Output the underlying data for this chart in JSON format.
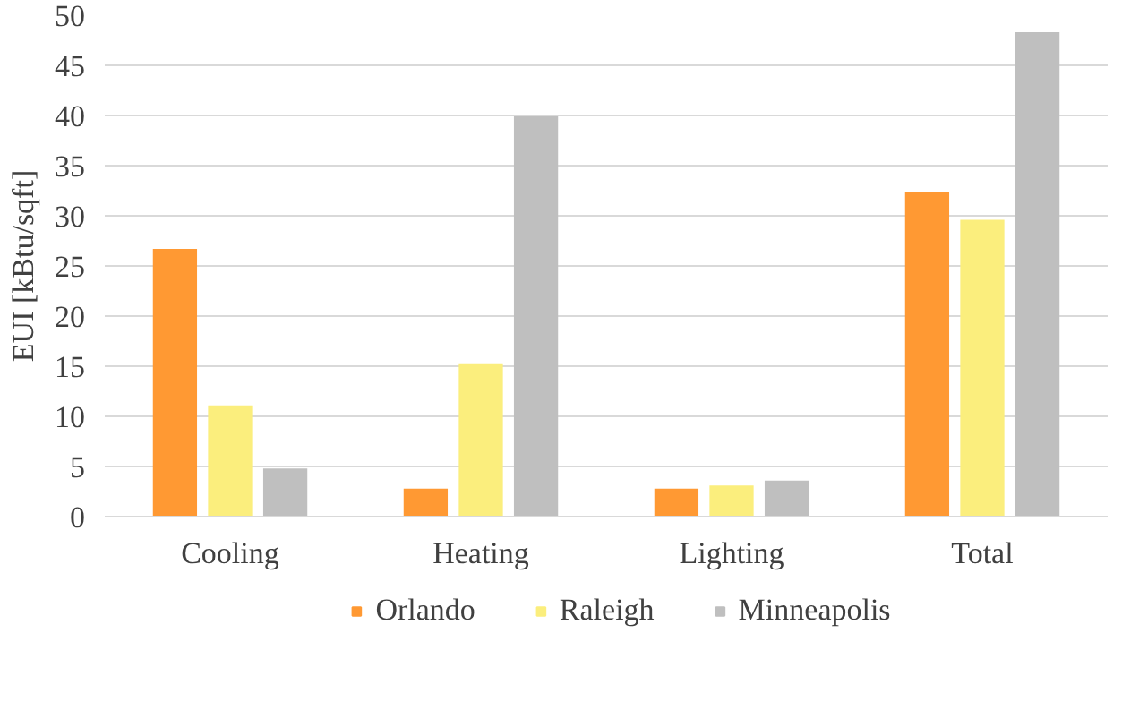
{
  "chart_data": {
    "type": "bar",
    "ylabel": "EUI [kBtu/sqft]",
    "categories": [
      "Cooling",
      "Heating",
      "Lighting",
      "Total"
    ],
    "series": [
      {
        "name": "Orlando",
        "color": "#ff9933",
        "values": [
          26.7,
          2.8,
          2.8,
          32.4
        ]
      },
      {
        "name": "Raleigh",
        "color": "#fbee7d",
        "values": [
          11.1,
          15.2,
          3.1,
          29.6
        ]
      },
      {
        "name": "Minneapolis",
        "color": "#bfbfbf",
        "values": [
          4.8,
          39.9,
          3.6,
          48.3
        ]
      }
    ],
    "ylim": [
      0,
      50
    ],
    "yticks": [
      0,
      5,
      10,
      15,
      20,
      25,
      30,
      35,
      40,
      45,
      50
    ],
    "grid": "y",
    "legend": "bottom"
  }
}
